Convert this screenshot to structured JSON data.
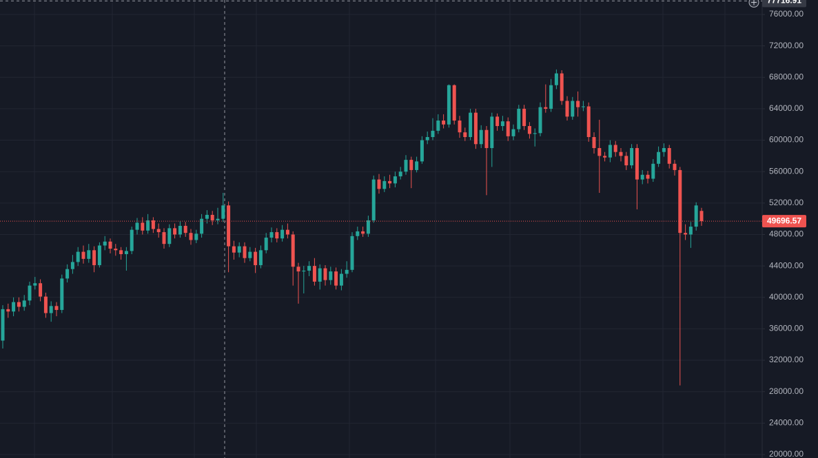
{
  "chart_data": {
    "type": "candlestick",
    "up_color": "#26a69a",
    "down_color": "#ef5350",
    "ylim": [
      19560,
      77840
    ],
    "yticks": [
      {
        "value": 20000,
        "label": "20000.00"
      },
      {
        "value": 24000,
        "label": "24000.00"
      },
      {
        "value": 28000,
        "label": "28000.00"
      },
      {
        "value": 32000,
        "label": "32000.00"
      },
      {
        "value": 36000,
        "label": "36000.00"
      },
      {
        "value": 40000,
        "label": "40000.00"
      },
      {
        "value": 44000,
        "label": "44000.00"
      },
      {
        "value": 48000,
        "label": "48000.00"
      },
      {
        "value": 52000,
        "label": "52000.00"
      },
      {
        "value": 56000,
        "label": "56000.00"
      },
      {
        "value": 60000,
        "label": "60000.00"
      },
      {
        "value": 64000,
        "label": "64000.00"
      },
      {
        "value": 68000,
        "label": "68000.00"
      },
      {
        "value": 72000,
        "label": "72000.00"
      },
      {
        "value": 76000,
        "label": "76000.00"
      }
    ],
    "grid": true,
    "last_price": 49696.57,
    "crosshair_price": 77716.91,
    "open": [
      34500,
      38500,
      38200,
      39400,
      38800,
      39600,
      41500,
      41800,
      40100,
      38000,
      38900,
      38400,
      42400,
      43600,
      44500,
      45800,
      44900,
      46000,
      44100,
      46600,
      47100,
      46200,
      46000,
      45500,
      45900,
      48600,
      49500,
      48500,
      49800,
      48700,
      48300,
      46800,
      48800,
      48000,
      49100,
      48200,
      47300,
      48100,
      50000,
      50500,
      49800,
      50000,
      51700,
      46500,
      45700,
      46500,
      45000,
      45800,
      44100,
      46000,
      47600,
      48300,
      47500,
      48600,
      48000,
      43900,
      43300,
      43400,
      44000,
      42000,
      43700,
      42200,
      43300,
      41500,
      43000,
      43500,
      47800,
      48400,
      48100,
      49800,
      55000,
      53800,
      54800,
      54500,
      55400,
      56000,
      57500,
      56200,
      57300,
      60000,
      60400,
      61200,
      62500,
      62000,
      67000,
      62500,
      61000,
      60400,
      63500,
      59500,
      61300,
      59000,
      63000,
      61800,
      62400,
      60500,
      61400,
      64000,
      61800,
      60800,
      60900,
      64200,
      64000,
      67000,
      68500,
      65000,
      63000,
      65000,
      64200,
      64300,
      60400,
      59000,
      58000,
      57800,
      59400,
      58500,
      58000,
      56800,
      59000,
      55000,
      55600,
      55100,
      57000,
      58500,
      59000,
      57000,
      56200,
      48200,
      48000,
      49000,
      51000
    ],
    "high": [
      39000,
      39200,
      40000,
      40000,
      40300,
      42000,
      42600,
      42300,
      40600,
      39500,
      39400,
      42900,
      44200,
      45400,
      46400,
      46600,
      46800,
      46500,
      47000,
      47800,
      47500,
      46800,
      46400,
      46400,
      49000,
      50100,
      50200,
      50600,
      50200,
      49400,
      48800,
      49300,
      49400,
      49700,
      49600,
      48700,
      48600,
      50600,
      51100,
      51000,
      51400,
      53300,
      52200,
      47200,
      47000,
      47000,
      46400,
      46300,
      46600,
      48200,
      48900,
      48800,
      49200,
      49400,
      48400,
      44400,
      44000,
      44600,
      45000,
      44200,
      44100,
      43900,
      43800,
      43600,
      44600,
      48300,
      49000,
      49000,
      50400,
      55500,
      55700,
      55400,
      55600,
      56000,
      56600,
      58100,
      57900,
      57900,
      60500,
      61100,
      62800,
      63300,
      63300,
      67100,
      67100,
      63100,
      61600,
      64000,
      64000,
      61900,
      61800,
      63500,
      63400,
      63100,
      62900,
      62000,
      64500,
      64500,
      62300,
      61500,
      64800,
      67100,
      67800,
      69000,
      68900,
      65600,
      65500,
      66200,
      65000,
      64800,
      61000,
      62600,
      58500,
      60000,
      59900,
      59000,
      58500,
      59500,
      59500,
      56200,
      56100,
      57600,
      59200,
      59600,
      59400,
      57500,
      56600,
      49300,
      49600,
      52100,
      51400
    ],
    "low": [
      33500,
      37400,
      37600,
      38200,
      38300,
      39000,
      41000,
      39500,
      37400,
      36900,
      37600,
      38000,
      41900,
      43000,
      44000,
      44300,
      44400,
      43200,
      43800,
      46000,
      45600,
      45300,
      44800,
      43400,
      45500,
      48000,
      48000,
      48100,
      48200,
      47600,
      46200,
      46400,
      47500,
      47600,
      47700,
      46700,
      46900,
      47600,
      49400,
      49200,
      49300,
      49600,
      43200,
      44800,
      45100,
      44400,
      44600,
      43100,
      43700,
      45600,
      47000,
      47000,
      47100,
      47500,
      41500,
      39200,
      40500,
      42700,
      41500,
      41000,
      41500,
      41600,
      41000,
      40900,
      42500,
      43200,
      47300,
      47700,
      47700,
      49500,
      53200,
      53400,
      53900,
      54000,
      55000,
      55600,
      53900,
      55900,
      57000,
      59500,
      60000,
      60800,
      61500,
      61600,
      62000,
      60300,
      59900,
      60000,
      58900,
      59000,
      53000,
      56600,
      61200,
      61200,
      59900,
      60000,
      61000,
      61300,
      60200,
      59200,
      60500,
      63500,
      63600,
      66500,
      64500,
      62500,
      62600,
      63000,
      63700,
      59800,
      58300,
      53300,
      57300,
      57200,
      57900,
      57300,
      56200,
      56400,
      51200,
      54400,
      54500,
      54700,
      56600,
      57900,
      56400,
      55500,
      28800,
      47300,
      46300,
      48500,
      49100
    ],
    "close": [
      38500,
      38200,
      39400,
      38800,
      39600,
      41500,
      41800,
      40100,
      38000,
      38900,
      38400,
      42400,
      43600,
      44500,
      45800,
      44900,
      46000,
      44100,
      46600,
      47100,
      46200,
      46000,
      45500,
      45900,
      48600,
      49500,
      48500,
      49800,
      48700,
      48300,
      46800,
      48800,
      48000,
      49100,
      48200,
      47300,
      48100,
      50000,
      50500,
      49800,
      50000,
      51700,
      46500,
      45700,
      46500,
      45000,
      45800,
      44100,
      46000,
      47600,
      48300,
      47500,
      48600,
      48000,
      43900,
      43300,
      43400,
      44000,
      42000,
      43700,
      42200,
      43300,
      41500,
      43000,
      43500,
      47800,
      48400,
      48100,
      49800,
      55000,
      53800,
      54800,
      54500,
      55400,
      56000,
      57500,
      56200,
      57300,
      60000,
      60400,
      61200,
      62500,
      62000,
      67000,
      62500,
      61000,
      60400,
      63500,
      59500,
      61300,
      59000,
      63000,
      61800,
      62400,
      60500,
      61400,
      64000,
      61800,
      60800,
      60900,
      64200,
      64000,
      67000,
      68500,
      65000,
      63000,
      65000,
      64200,
      64300,
      60400,
      59000,
      58000,
      57800,
      59400,
      58500,
      58000,
      56800,
      59000,
      55000,
      55600,
      55100,
      57000,
      58500,
      59000,
      57000,
      56200,
      48200,
      48000,
      49000,
      51700,
      49700
    ]
  }
}
